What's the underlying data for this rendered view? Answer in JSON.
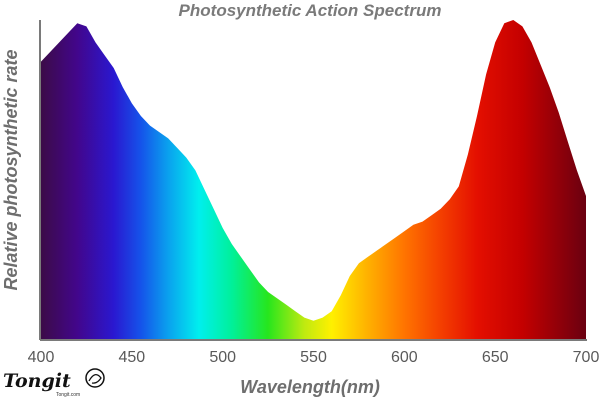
{
  "chart_data": {
    "type": "area",
    "title": "Photosynthetic Action Spectrum",
    "xlabel": "Wavelength(nm)",
    "ylabel": "Relative photosynthetic rate",
    "xlim": [
      400,
      700
    ],
    "ylim": [
      0,
      1
    ],
    "x_ticks": [
      "400",
      "450",
      "500",
      "550",
      "600",
      "650",
      "700"
    ],
    "grid": false,
    "x": [
      400,
      405,
      410,
      415,
      420,
      425,
      430,
      435,
      440,
      445,
      450,
      455,
      460,
      465,
      470,
      475,
      480,
      485,
      490,
      495,
      500,
      505,
      510,
      515,
      520,
      525,
      530,
      535,
      540,
      545,
      550,
      555,
      560,
      565,
      570,
      575,
      580,
      585,
      590,
      595,
      600,
      605,
      610,
      615,
      620,
      625,
      630,
      635,
      640,
      645,
      650,
      655,
      660,
      665,
      670,
      675,
      680,
      685,
      690,
      695,
      700
    ],
    "series": [
      {
        "values": [
          0.87,
          0.9,
          0.93,
          0.96,
          0.99,
          0.98,
          0.93,
          0.89,
          0.85,
          0.79,
          0.74,
          0.7,
          0.67,
          0.65,
          0.63,
          0.6,
          0.57,
          0.53,
          0.47,
          0.41,
          0.35,
          0.3,
          0.26,
          0.22,
          0.18,
          0.15,
          0.13,
          0.11,
          0.09,
          0.07,
          0.06,
          0.07,
          0.09,
          0.14,
          0.2,
          0.24,
          0.26,
          0.28,
          0.3,
          0.32,
          0.34,
          0.36,
          0.37,
          0.39,
          0.41,
          0.44,
          0.48,
          0.58,
          0.7,
          0.83,
          0.93,
          0.99,
          1.0,
          0.98,
          0.93,
          0.86,
          0.79,
          0.71,
          0.62,
          0.53,
          0.45
        ]
      }
    ],
    "gradient_colors": [
      {
        "wl": 400,
        "color": "#3c0b47"
      },
      {
        "wl": 420,
        "color": "#42068c"
      },
      {
        "wl": 440,
        "color": "#2a18d0"
      },
      {
        "wl": 455,
        "color": "#1553ea"
      },
      {
        "wl": 470,
        "color": "#0aa1ee"
      },
      {
        "wl": 487,
        "color": "#00efee"
      },
      {
        "wl": 505,
        "color": "#00f09a"
      },
      {
        "wl": 525,
        "color": "#27e61d"
      },
      {
        "wl": 545,
        "color": "#bfea10"
      },
      {
        "wl": 560,
        "color": "#fff000"
      },
      {
        "wl": 580,
        "color": "#ffb000"
      },
      {
        "wl": 600,
        "color": "#ff7400"
      },
      {
        "wl": 620,
        "color": "#f43f00"
      },
      {
        "wl": 640,
        "color": "#e40f00"
      },
      {
        "wl": 665,
        "color": "#c40000"
      },
      {
        "wl": 700,
        "color": "#6a0010"
      }
    ],
    "axis_color": "#7a7a7a"
  },
  "logo": {
    "text": "Tongit",
    "subtext": "Tongit.com"
  }
}
